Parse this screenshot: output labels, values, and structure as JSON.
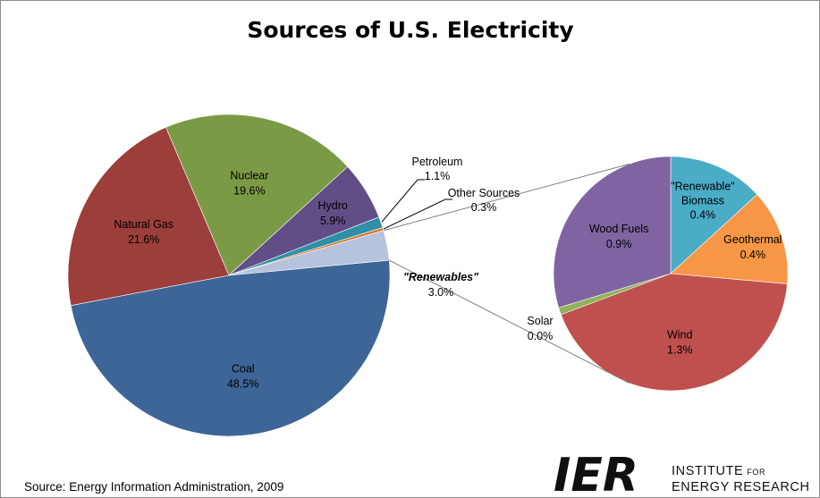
{
  "title": "Sources of U.S. Electricity",
  "source": "Source: Energy Information Administration, 2009",
  "logo": {
    "mark": "IER",
    "line1": "INSTITUTE",
    "line1_small": "FOR",
    "line2": "ENERGY RESEARCH",
    "color": "#0f0f0f"
  },
  "chart_data": [
    {
      "type": "pie",
      "series": [
        {
          "name": "Coal",
          "label": "Coal",
          "value": 48.5,
          "value_label": "48.5%",
          "color": "#3E6597"
        },
        {
          "name": "Natural Gas",
          "label": "Natural Gas",
          "value": 21.6,
          "value_label": "21.6%",
          "color": "#9C3E3B"
        },
        {
          "name": "Nuclear",
          "label": "Nuclear",
          "value": 19.6,
          "value_label": "19.6%",
          "color": "#7B9A45"
        },
        {
          "name": "Hydro",
          "label": "Hydro",
          "value": 5.9,
          "value_label": "5.9%",
          "color": "#614E86"
        },
        {
          "name": "Petroleum",
          "label": "Petroleum",
          "value": 1.1,
          "value_label": "1.1%",
          "color": "#2F8FA7"
        },
        {
          "name": "Other Sources",
          "label": "Other Sources",
          "value": 0.3,
          "value_label": "0.3%",
          "color": "#D8782A"
        },
        {
          "name": "Renewables",
          "label": "\"Renewables\"",
          "value": 3.0,
          "value_label": "3.0%",
          "color": "#B7C3DD"
        }
      ]
    },
    {
      "type": "pie",
      "series": [
        {
          "name": "Renewable Biomass",
          "label": "\"Renewable\"",
          "label2": "Biomass",
          "value": 0.4,
          "value_label": "0.4%",
          "color": "#4BACC6"
        },
        {
          "name": "Geothermal",
          "label": "Geothermal",
          "value": 0.4,
          "value_label": "0.4%",
          "color": "#F79646"
        },
        {
          "name": "Wind",
          "label": "Wind",
          "value": 1.3,
          "value_label": "1.3%",
          "color": "#C0504D"
        },
        {
          "name": "Solar",
          "label": "Solar",
          "value": 0.03,
          "value_label": "0.0%",
          "color": "#8EB35A"
        },
        {
          "name": "Wood Fuels",
          "label": "Wood Fuels",
          "value": 0.9,
          "value_label": "0.9%",
          "color": "#8064A2"
        }
      ]
    }
  ]
}
